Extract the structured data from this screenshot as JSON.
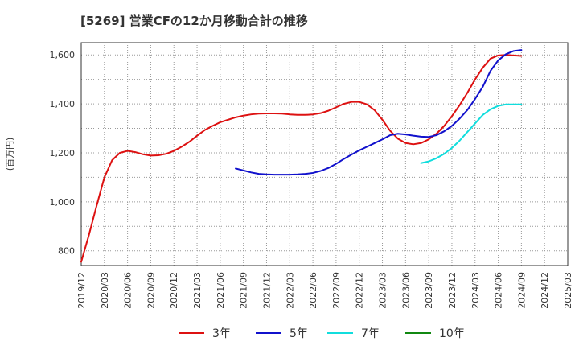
{
  "chart_data": {
    "type": "line",
    "title": "[5269]  営業CFの12か月移動合計の推移",
    "ylabel": "(百万円)",
    "xlabel": "",
    "ylim": [
      740,
      1650
    ],
    "yticks": [
      800,
      1000,
      1200,
      1400,
      1600
    ],
    "ytick_labels": [
      "800",
      "1,000",
      "1,200",
      "1,400",
      "1,600"
    ],
    "x_range": [
      "2019/12",
      "2025/03"
    ],
    "xtick_labels": [
      "2019/12",
      "2020/03",
      "2020/06",
      "2020/09",
      "2020/12",
      "2021/03",
      "2021/06",
      "2021/09",
      "2021/12",
      "2022/03",
      "2022/06",
      "2022/09",
      "2022/12",
      "2023/03",
      "2023/06",
      "2023/09",
      "2023/12",
      "2024/03",
      "2024/06",
      "2024/09",
      "2024/12",
      "2025/03"
    ],
    "grid": true,
    "legend_position": "bottom",
    "series": [
      {
        "name": "3年",
        "color": "#dd1111",
        "x": [
          "2019/12",
          "2020/01",
          "2020/02",
          "2020/03",
          "2020/04",
          "2020/05",
          "2020/06",
          "2020/07",
          "2020/08",
          "2020/09",
          "2020/10",
          "2020/11",
          "2020/12",
          "2021/01",
          "2021/02",
          "2021/03",
          "2021/04",
          "2021/05",
          "2021/06",
          "2021/07",
          "2021/08",
          "2021/09",
          "2021/10",
          "2021/11",
          "2021/12",
          "2022/01",
          "2022/02",
          "2022/03",
          "2022/04",
          "2022/05",
          "2022/06",
          "2022/07",
          "2022/08",
          "2022/09",
          "2022/10",
          "2022/11",
          "2022/12",
          "2023/01",
          "2023/02",
          "2023/03",
          "2023/04",
          "2023/05",
          "2023/06",
          "2023/07",
          "2023/08",
          "2023/09",
          "2023/10",
          "2023/11",
          "2023/12",
          "2024/01",
          "2024/02",
          "2024/03",
          "2024/04",
          "2024/05",
          "2024/06",
          "2024/07",
          "2024/08",
          "2024/09"
        ],
        "values": [
          755,
          865,
          985,
          1100,
          1170,
          1200,
          1208,
          1203,
          1194,
          1189,
          1190,
          1196,
          1208,
          1225,
          1245,
          1270,
          1293,
          1310,
          1325,
          1335,
          1345,
          1352,
          1357,
          1360,
          1361,
          1361,
          1360,
          1357,
          1355,
          1355,
          1357,
          1362,
          1372,
          1386,
          1400,
          1408,
          1408,
          1398,
          1374,
          1335,
          1290,
          1258,
          1240,
          1235,
          1240,
          1255,
          1278,
          1310,
          1350,
          1395,
          1445,
          1500,
          1548,
          1585,
          1598,
          1600,
          1598,
          1596
        ]
      },
      {
        "name": "5年",
        "color": "#1111cc",
        "x": [
          "2021/08",
          "2021/09",
          "2021/10",
          "2021/11",
          "2021/12",
          "2022/01",
          "2022/02",
          "2022/03",
          "2022/04",
          "2022/05",
          "2022/06",
          "2022/07",
          "2022/08",
          "2022/09",
          "2022/10",
          "2022/11",
          "2022/12",
          "2023/01",
          "2023/02",
          "2023/03",
          "2023/04",
          "2023/05",
          "2023/06",
          "2023/07",
          "2023/08",
          "2023/09",
          "2023/10",
          "2023/11",
          "2023/12",
          "2024/01",
          "2024/02",
          "2024/03",
          "2024/04",
          "2024/05",
          "2024/06",
          "2024/07",
          "2024/08",
          "2024/09"
        ],
        "values": [
          1136,
          1128,
          1120,
          1114,
          1112,
          1111,
          1111,
          1111,
          1112,
          1114,
          1118,
          1126,
          1138,
          1155,
          1175,
          1193,
          1210,
          1225,
          1240,
          1255,
          1272,
          1278,
          1275,
          1270,
          1266,
          1265,
          1272,
          1288,
          1310,
          1340,
          1375,
          1420,
          1470,
          1535,
          1578,
          1603,
          1616,
          1620
        ]
      },
      {
        "name": "7年",
        "color": "#11dddd",
        "x": [
          "2023/08",
          "2023/09",
          "2023/10",
          "2023/11",
          "2023/12",
          "2024/01",
          "2024/02",
          "2024/03",
          "2024/04",
          "2024/05",
          "2024/06",
          "2024/07",
          "2024/08",
          "2024/09"
        ],
        "values": [
          1158,
          1165,
          1178,
          1196,
          1220,
          1250,
          1285,
          1320,
          1355,
          1378,
          1392,
          1398,
          1398,
          1398
        ]
      },
      {
        "name": "10年",
        "color": "#118811",
        "x": [],
        "values": []
      }
    ]
  }
}
